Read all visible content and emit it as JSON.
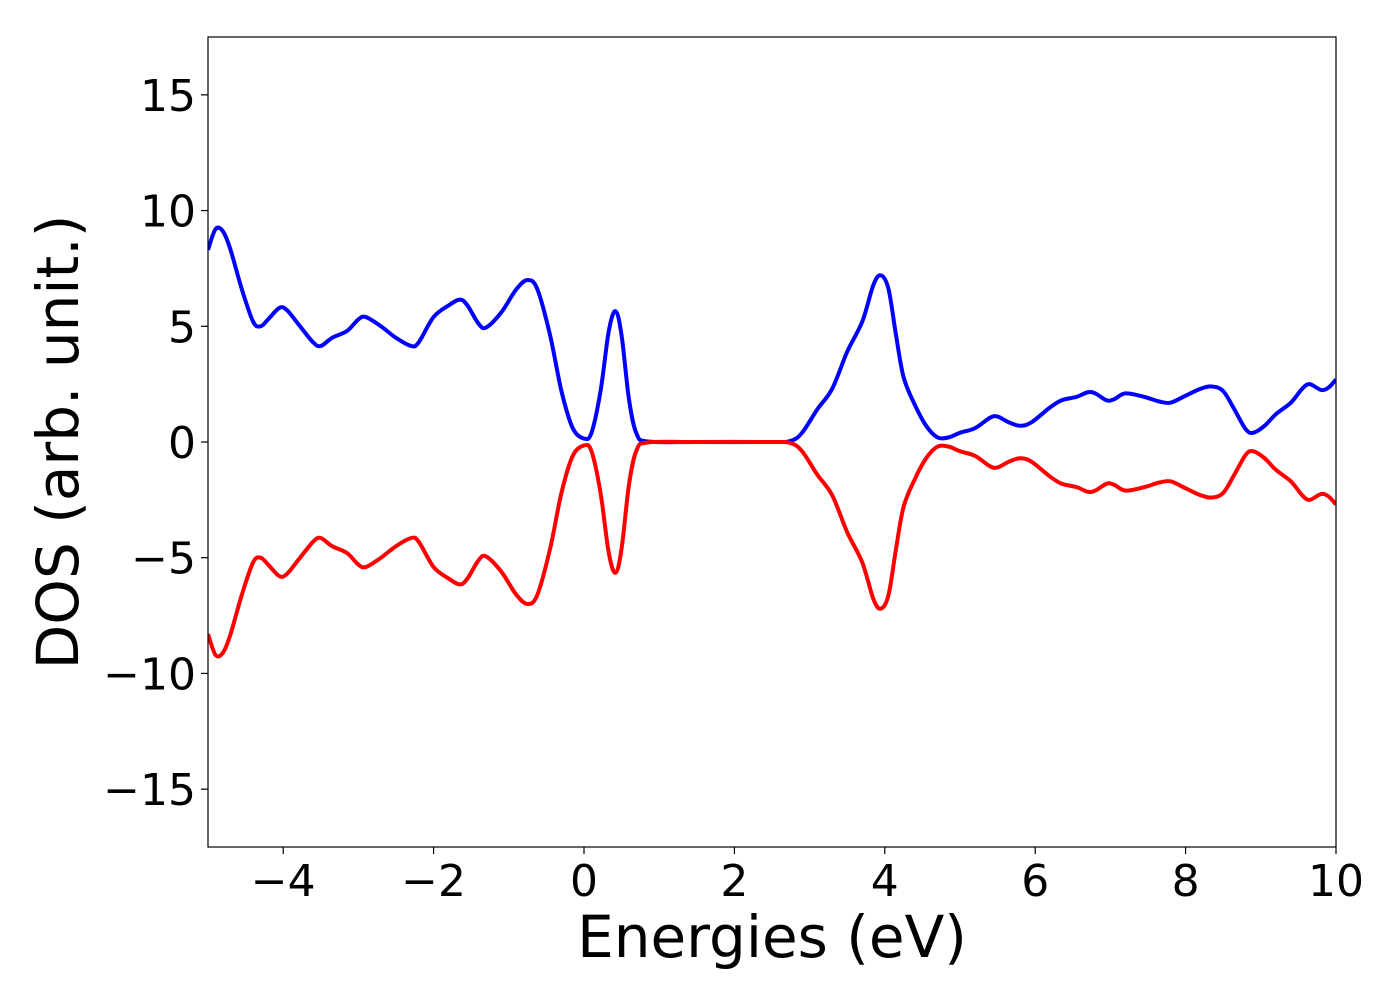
{
  "chart_data": {
    "type": "line",
    "xlabel": "Energies (eV)",
    "ylabel": "DOS (arb. unit.)",
    "xlim": [
      -5,
      10
    ],
    "ylim": [
      -17.5,
      17.5
    ],
    "xticks": [
      -4,
      -2,
      0,
      2,
      4,
      6,
      8,
      10
    ],
    "xtick_labels": [
      "−4",
      "−2",
      "0",
      "2",
      "4",
      "6",
      "8",
      "10"
    ],
    "yticks": [
      15,
      10,
      5,
      0,
      -5,
      -10,
      -15
    ],
    "ytick_labels": [
      "15",
      "10",
      "5",
      "0",
      "−5",
      "−10",
      "−15"
    ],
    "grid": false,
    "series": [
      {
        "color": "#0000ff",
        "points": [
          [
            -5.0,
            8.3
          ],
          [
            -4.9,
            9.2
          ],
          [
            -4.8,
            9.1
          ],
          [
            -4.7,
            8.3
          ],
          [
            -4.55,
            6.6
          ],
          [
            -4.4,
            5.2
          ],
          [
            -4.3,
            5.0
          ],
          [
            -4.2,
            5.3
          ],
          [
            -4.05,
            5.8
          ],
          [
            -3.95,
            5.7
          ],
          [
            -3.8,
            5.1
          ],
          [
            -3.6,
            4.3
          ],
          [
            -3.5,
            4.15
          ],
          [
            -3.35,
            4.5
          ],
          [
            -3.15,
            4.8
          ],
          [
            -3.0,
            5.3
          ],
          [
            -2.9,
            5.4
          ],
          [
            -2.7,
            5.0
          ],
          [
            -2.5,
            4.5
          ],
          [
            -2.3,
            4.15
          ],
          [
            -2.2,
            4.3
          ],
          [
            -2.0,
            5.4
          ],
          [
            -1.8,
            5.9
          ],
          [
            -1.65,
            6.15
          ],
          [
            -1.55,
            5.9
          ],
          [
            -1.4,
            5.1
          ],
          [
            -1.3,
            4.95
          ],
          [
            -1.1,
            5.6
          ],
          [
            -0.9,
            6.6
          ],
          [
            -0.75,
            7.0
          ],
          [
            -0.62,
            6.6
          ],
          [
            -0.45,
            4.6
          ],
          [
            -0.3,
            2.2
          ],
          [
            -0.15,
            0.6
          ],
          [
            0.0,
            0.15
          ],
          [
            0.1,
            0.4
          ],
          [
            0.22,
            2.2
          ],
          [
            0.33,
            4.8
          ],
          [
            0.42,
            5.65
          ],
          [
            0.5,
            4.6
          ],
          [
            0.6,
            1.8
          ],
          [
            0.7,
            0.35
          ],
          [
            0.85,
            0.02
          ],
          [
            1.5,
            0.0
          ],
          [
            2.5,
            0.0
          ],
          [
            2.75,
            0.05
          ],
          [
            2.9,
            0.4
          ],
          [
            3.1,
            1.4
          ],
          [
            3.3,
            2.3
          ],
          [
            3.5,
            3.9
          ],
          [
            3.7,
            5.2
          ],
          [
            3.85,
            6.8
          ],
          [
            3.95,
            7.2
          ],
          [
            4.05,
            6.6
          ],
          [
            4.15,
            4.6
          ],
          [
            4.25,
            2.8
          ],
          [
            4.4,
            1.6
          ],
          [
            4.55,
            0.7
          ],
          [
            4.7,
            0.2
          ],
          [
            4.85,
            0.2
          ],
          [
            5.0,
            0.4
          ],
          [
            5.2,
            0.6
          ],
          [
            5.4,
            1.05
          ],
          [
            5.5,
            1.1
          ],
          [
            5.65,
            0.85
          ],
          [
            5.8,
            0.7
          ],
          [
            5.95,
            0.85
          ],
          [
            6.2,
            1.5
          ],
          [
            6.35,
            1.8
          ],
          [
            6.55,
            1.95
          ],
          [
            6.7,
            2.15
          ],
          [
            6.8,
            2.1
          ],
          [
            6.95,
            1.8
          ],
          [
            7.05,
            1.85
          ],
          [
            7.2,
            2.1
          ],
          [
            7.45,
            1.95
          ],
          [
            7.65,
            1.75
          ],
          [
            7.8,
            1.7
          ],
          [
            8.0,
            2.0
          ],
          [
            8.2,
            2.3
          ],
          [
            8.35,
            2.4
          ],
          [
            8.5,
            2.2
          ],
          [
            8.65,
            1.4
          ],
          [
            8.8,
            0.55
          ],
          [
            8.9,
            0.4
          ],
          [
            9.05,
            0.7
          ],
          [
            9.2,
            1.2
          ],
          [
            9.4,
            1.7
          ],
          [
            9.55,
            2.3
          ],
          [
            9.65,
            2.5
          ],
          [
            9.8,
            2.25
          ],
          [
            9.9,
            2.35
          ],
          [
            10.0,
            2.7
          ]
        ]
      },
      {
        "color": "#ff0000",
        "points": [
          [
            -5.0,
            -8.3
          ],
          [
            -4.9,
            -9.2
          ],
          [
            -4.8,
            -9.1
          ],
          [
            -4.7,
            -8.3
          ],
          [
            -4.55,
            -6.6
          ],
          [
            -4.4,
            -5.2
          ],
          [
            -4.3,
            -5.0
          ],
          [
            -4.2,
            -5.3
          ],
          [
            -4.05,
            -5.8
          ],
          [
            -3.95,
            -5.7
          ],
          [
            -3.8,
            -5.1
          ],
          [
            -3.6,
            -4.3
          ],
          [
            -3.5,
            -4.15
          ],
          [
            -3.35,
            -4.5
          ],
          [
            -3.15,
            -4.8
          ],
          [
            -3.0,
            -5.3
          ],
          [
            -2.9,
            -5.4
          ],
          [
            -2.7,
            -5.0
          ],
          [
            -2.5,
            -4.5
          ],
          [
            -2.3,
            -4.15
          ],
          [
            -2.2,
            -4.3
          ],
          [
            -2.0,
            -5.4
          ],
          [
            -1.8,
            -5.9
          ],
          [
            -1.65,
            -6.15
          ],
          [
            -1.55,
            -5.9
          ],
          [
            -1.4,
            -5.1
          ],
          [
            -1.3,
            -4.95
          ],
          [
            -1.1,
            -5.6
          ],
          [
            -0.9,
            -6.6
          ],
          [
            -0.75,
            -7.0
          ],
          [
            -0.62,
            -6.6
          ],
          [
            -0.45,
            -4.6
          ],
          [
            -0.3,
            -2.2
          ],
          [
            -0.15,
            -0.6
          ],
          [
            0.0,
            -0.15
          ],
          [
            0.1,
            -0.4
          ],
          [
            0.22,
            -2.2
          ],
          [
            0.33,
            -4.8
          ],
          [
            0.42,
            -5.65
          ],
          [
            0.5,
            -4.6
          ],
          [
            0.6,
            -1.8
          ],
          [
            0.7,
            -0.35
          ],
          [
            0.85,
            -0.02
          ],
          [
            1.5,
            0.0
          ],
          [
            2.5,
            0.0
          ],
          [
            2.75,
            -0.05
          ],
          [
            2.9,
            -0.4
          ],
          [
            3.1,
            -1.4
          ],
          [
            3.3,
            -2.3
          ],
          [
            3.5,
            -3.9
          ],
          [
            3.7,
            -5.2
          ],
          [
            3.85,
            -6.8
          ],
          [
            3.95,
            -7.2
          ],
          [
            4.05,
            -6.6
          ],
          [
            4.15,
            -4.6
          ],
          [
            4.25,
            -2.8
          ],
          [
            4.4,
            -1.6
          ],
          [
            4.55,
            -0.7
          ],
          [
            4.7,
            -0.2
          ],
          [
            4.85,
            -0.2
          ],
          [
            5.0,
            -0.4
          ],
          [
            5.2,
            -0.6
          ],
          [
            5.4,
            -1.05
          ],
          [
            5.5,
            -1.1
          ],
          [
            5.65,
            -0.85
          ],
          [
            5.8,
            -0.7
          ],
          [
            5.95,
            -0.85
          ],
          [
            6.2,
            -1.5
          ],
          [
            6.35,
            -1.8
          ],
          [
            6.55,
            -1.95
          ],
          [
            6.7,
            -2.15
          ],
          [
            6.8,
            -2.1
          ],
          [
            6.95,
            -1.8
          ],
          [
            7.05,
            -1.85
          ],
          [
            7.2,
            -2.1
          ],
          [
            7.45,
            -1.95
          ],
          [
            7.65,
            -1.75
          ],
          [
            7.8,
            -1.7
          ],
          [
            8.0,
            -2.0
          ],
          [
            8.2,
            -2.3
          ],
          [
            8.35,
            -2.4
          ],
          [
            8.5,
            -2.2
          ],
          [
            8.65,
            -1.4
          ],
          [
            8.8,
            -0.55
          ],
          [
            8.9,
            -0.4
          ],
          [
            9.05,
            -0.7
          ],
          [
            9.2,
            -1.2
          ],
          [
            9.4,
            -1.7
          ],
          [
            9.55,
            -2.3
          ],
          [
            9.65,
            -2.5
          ],
          [
            9.8,
            -2.25
          ],
          [
            9.9,
            -2.35
          ],
          [
            10.0,
            -2.7
          ]
        ]
      }
    ]
  }
}
